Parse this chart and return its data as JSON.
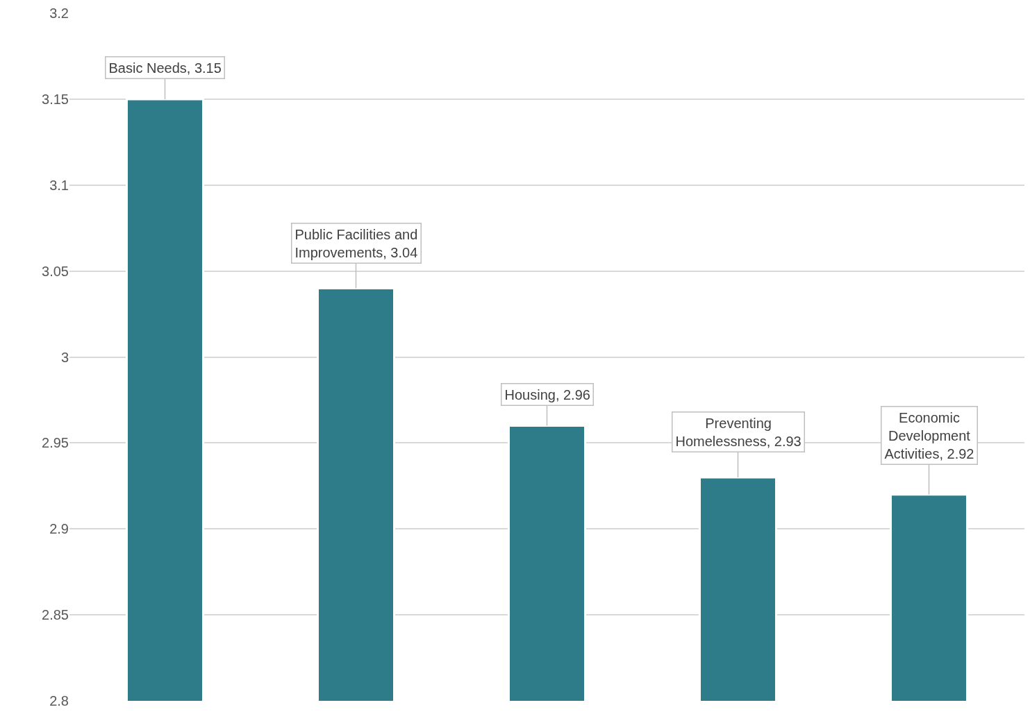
{
  "chart_data": {
    "type": "bar",
    "categories": [
      null,
      null,
      null,
      null,
      null
    ],
    "value_labels": [
      "Basic Needs, 3.15",
      "Public Facilities and Improvements, 3.04",
      "Housing, 2.96",
      "Preventing Homelessness, 2.93",
      "Economic Development Activities, 2.92"
    ],
    "values": [
      3.15,
      3.04,
      2.96,
      2.93,
      2.92
    ],
    "color": "#2e7b8a",
    "ylim": [
      2.8,
      3.2
    ],
    "yticks": [
      2.8,
      2.85,
      2.9,
      2.95,
      3,
      3.05,
      3.1,
      3.15,
      3.2
    ],
    "grid": "y",
    "tick_labels": "y"
  }
}
